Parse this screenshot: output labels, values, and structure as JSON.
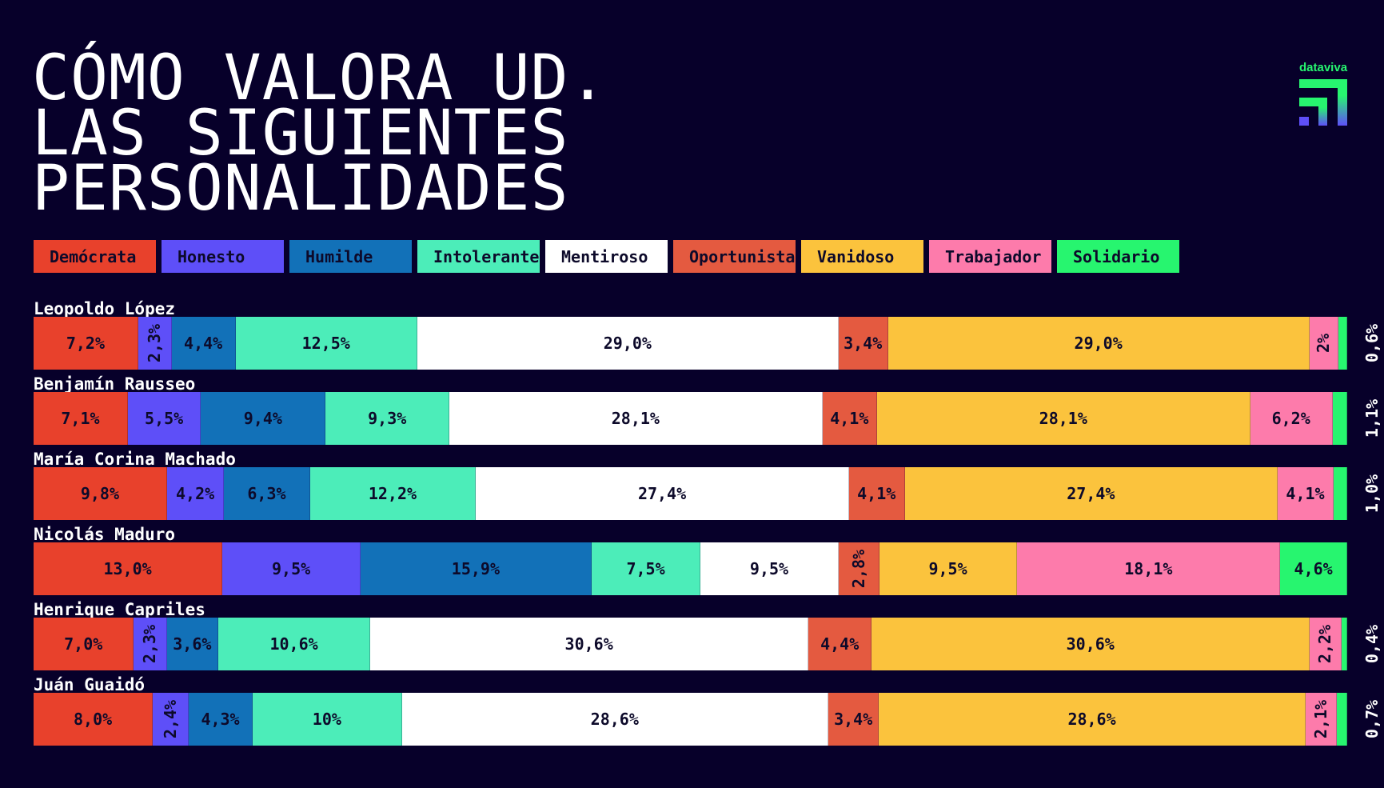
{
  "title": [
    "CÓMO VALORA UD.",
    "LAS SIGUIENTES",
    "PERSONALIDADES"
  ],
  "logo": {
    "text": "dataviva"
  },
  "chart_data": {
    "type": "bar",
    "orientation": "horizontal-stacked",
    "title": "CÓMO VALORA UD. LAS SIGUIENTES PERSONALIDADES",
    "legend_position": "top",
    "series": [
      {
        "name": "Demócrata",
        "color": "#e8412c"
      },
      {
        "name": "Honesto",
        "color": "#5e4ff8"
      },
      {
        "name": "Humilde",
        "color": "#1271b8"
      },
      {
        "name": "Intolerante",
        "color": "#4cedb9"
      },
      {
        "name": "Mentiroso",
        "color": "#ffffff"
      },
      {
        "name": "Oportunista",
        "color": "#e45a40"
      },
      {
        "name": "Vanidoso",
        "color": "#fbc33d"
      },
      {
        "name": "Trabajador",
        "color": "#fd7bab"
      },
      {
        "name": "Solidario",
        "color": "#27f56f"
      }
    ],
    "categories": [
      "Leopoldo López",
      "Benjamín Rausseo",
      "María Corina Machado",
      "Nicolás Maduro",
      "Henrique Capriles",
      "Juán Guaidó"
    ],
    "values": [
      [
        7.2,
        2.3,
        4.4,
        12.5,
        29.0,
        3.4,
        29.0,
        2,
        0.6
      ],
      [
        7.1,
        5.5,
        9.4,
        9.3,
        28.1,
        4.1,
        28.1,
        6.2,
        1.1
      ],
      [
        9.8,
        4.2,
        6.3,
        12.2,
        27.4,
        4.1,
        27.4,
        4.1,
        1.0
      ],
      [
        13.0,
        9.5,
        15.9,
        7.5,
        9.5,
        2.8,
        9.5,
        18.1,
        4.6
      ],
      [
        7.0,
        2.3,
        3.6,
        10.6,
        30.6,
        4.4,
        30.6,
        2.2,
        0.4
      ],
      [
        8.0,
        2.4,
        4.3,
        10,
        28.6,
        3.4,
        28.6,
        2.1,
        0.7
      ]
    ],
    "labels": [
      [
        "7,2%",
        "2,3%",
        "4,4%",
        "12,5%",
        "29,0%",
        "3,4%",
        "29,0%",
        "2%",
        "0,6%"
      ],
      [
        "7,1%",
        "5,5%",
        "9,4%",
        "9,3%",
        "28,1%",
        "4,1%",
        "28,1%",
        "6,2%",
        "1,1%"
      ],
      [
        "9,8%",
        "4,2%",
        "6,3%",
        "12,2%",
        "27,4%",
        "4,1%",
        "27,4%",
        "4,1%",
        "1,0%"
      ],
      [
        "13,0%",
        "9,5%",
        "15,9%",
        "7,5%",
        "9,5%",
        "2,8%",
        "9,5%",
        "18,1%",
        "4,6%"
      ],
      [
        "7,0%",
        "2,3%",
        "3,6%",
        "10,6%",
        "30,6%",
        "4,4%",
        "30,6%",
        "2,2%",
        "0,4%"
      ],
      [
        "8,0%",
        "2,4%",
        "4,3%",
        "10%",
        "28,6%",
        "3,4%",
        "28,6%",
        "2,1%",
        "0,7%"
      ]
    ]
  }
}
